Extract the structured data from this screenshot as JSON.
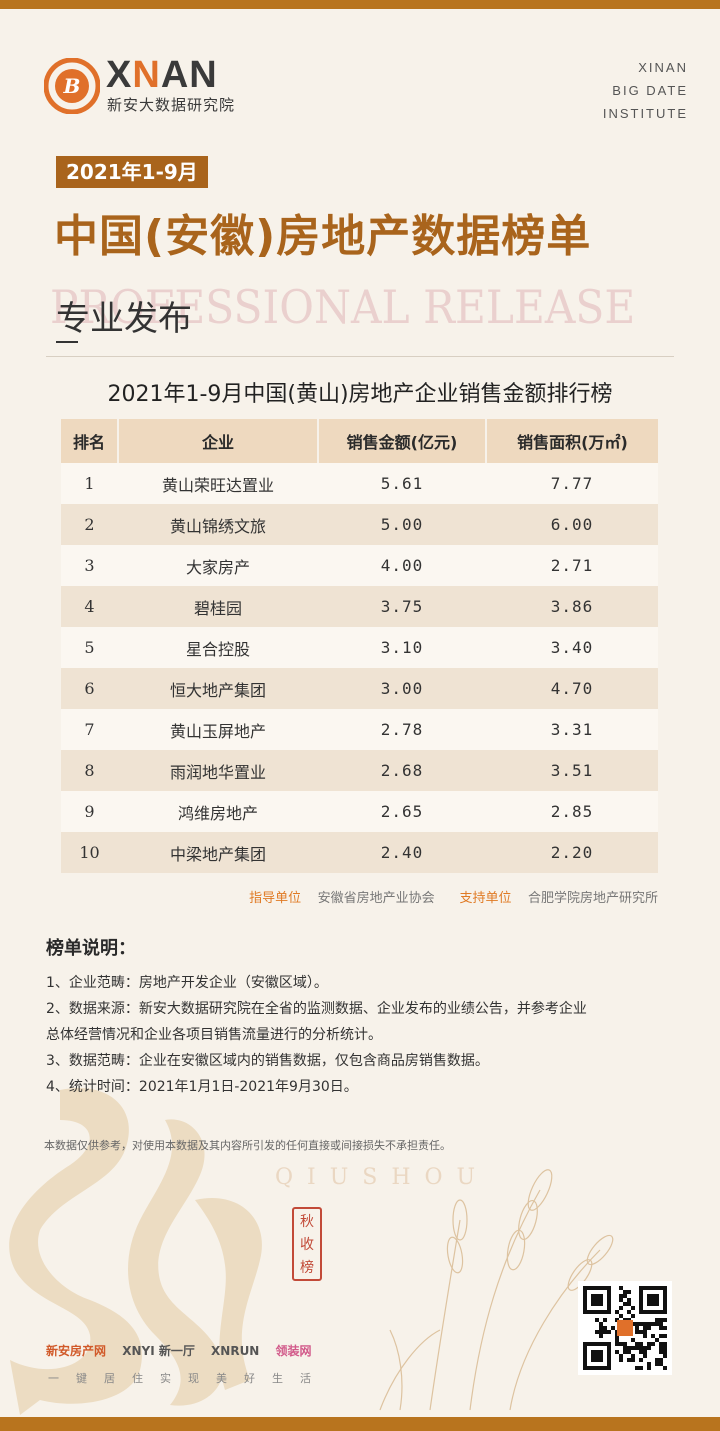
{
  "brand": {
    "logo_glyph": "B",
    "wordmark_left": "X",
    "wordmark_accent": "N",
    "wordmark_right": "AN",
    "subtitle": "新安大数据研究院",
    "institute_lines": [
      "XINAN",
      "BIG DATE",
      "INSTITUTE"
    ],
    "accent_color": "#a9641c",
    "logo_color": "#e0702a"
  },
  "header": {
    "period": "2021年1-9月",
    "title": "中国(安徽)房地产数据榜单",
    "watermark_en": "PROFESSIONAL RELEASE",
    "subtitle": "专业发布"
  },
  "table": {
    "title": "2021年1-9月中国(黄山)房地产企业销售金额排行榜",
    "columns": [
      "排名",
      "企业",
      "销售金额(亿元)",
      "销售面积(万㎡)"
    ],
    "rows": [
      {
        "rank": "1",
        "company": "黄山荣旺达置业",
        "amount": "5.61",
        "area": "7.77"
      },
      {
        "rank": "2",
        "company": "黄山锦绣文旅",
        "amount": "5.00",
        "area": "6.00"
      },
      {
        "rank": "3",
        "company": "大家房产",
        "amount": "4.00",
        "area": "2.71"
      },
      {
        "rank": "4",
        "company": "碧桂园",
        "amount": "3.75",
        "area": "3.86"
      },
      {
        "rank": "5",
        "company": "星合控股",
        "amount": "3.10",
        "area": "3.40"
      },
      {
        "rank": "6",
        "company": "恒大地产集团",
        "amount": "3.00",
        "area": "4.70"
      },
      {
        "rank": "7",
        "company": "黄山玉屏地产",
        "amount": "2.78",
        "area": "3.31"
      },
      {
        "rank": "8",
        "company": "雨润地华置业",
        "amount": "2.68",
        "area": "3.51"
      },
      {
        "rank": "9",
        "company": "鸿维房地产",
        "amount": "2.65",
        "area": "2.85"
      },
      {
        "rank": "10",
        "company": "中梁地产集团",
        "amount": "2.40",
        "area": "2.20"
      }
    ]
  },
  "sponsors": {
    "guide_label": "指导单位",
    "guide_org": "安徽省房地产业协会",
    "support_label": "支持单位",
    "support_org": "合肥学院房地产研究所"
  },
  "notes": {
    "title": "榜单说明：",
    "lines": [
      "1、企业范畴：房地产开发企业（安徽区域）。",
      "2、数据来源：新安大数据研究院在全省的监测数据、企业发布的业绩公告，并参考企业",
      "总体经营情况和企业各项目销售流量进行的分析统计。",
      "3、数据范畴：企业在安徽区域内的销售数据，仅包含商品房销售数据。",
      "4、统计时间：2021年1月1日-2021年9月30日。"
    ],
    "disclaimer": "本数据仅供参考，对使用本数据及其内容所引发的任何直接或间接损失不承担责任。"
  },
  "decor": {
    "qiushou": "QIUSHOU",
    "seal": [
      "秋",
      "收",
      "榜"
    ]
  },
  "footer": {
    "partners": [
      "新安房产网",
      "XNYI 新一厅",
      "XNRUN",
      "领装网"
    ],
    "slogan": "一键居住实现美好生活"
  }
}
